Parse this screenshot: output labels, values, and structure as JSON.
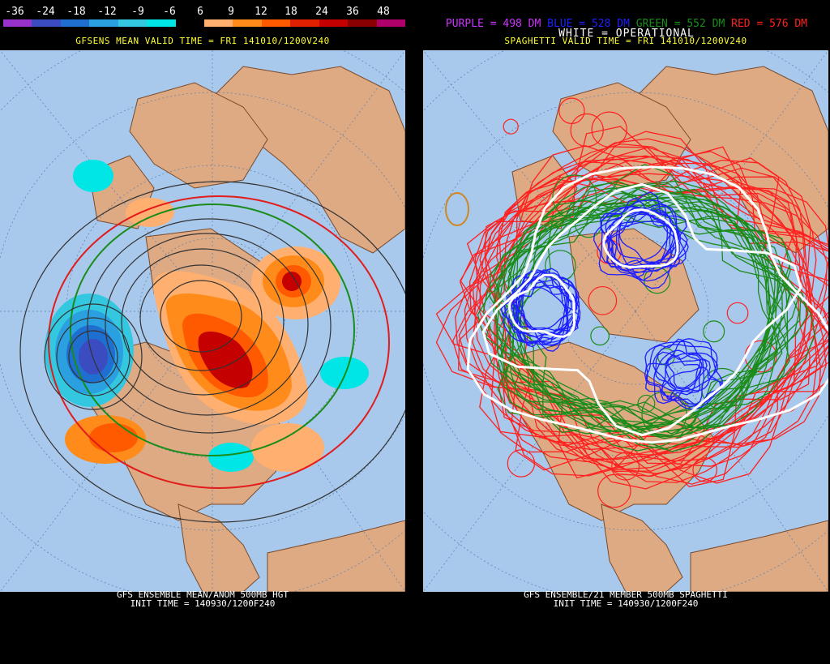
{
  "left": {
    "colorbar": {
      "labels": [
        "-36",
        "-24",
        "-18",
        "-12",
        "-9",
        "-6",
        "6",
        "9",
        "12",
        "18",
        "24",
        "36",
        "48"
      ],
      "colors": [
        "#9932cc",
        "#3b4cc0",
        "#1f6fd0",
        "#2aa0e0",
        "#34c8e0",
        "#00e5e5",
        "#000000",
        "#ffb070",
        "#ff8c1a",
        "#ff5a00",
        "#e02000",
        "#c40000",
        "#8a0000",
        "#b0006a"
      ]
    },
    "valid_time": "GFSENS MEAN VALID TIME = FRI 141010/1200V240",
    "footer_line1": "GFS ENSEMBLE MEAN/ANOM 500MB HGT",
    "footer_line2": "INIT TIME = 140930/1200F240"
  },
  "right": {
    "legend": {
      "purple": "PURPLE = 498 DM",
      "blue": "BLUE = 528 DM",
      "green": "GREEN = 552 DM",
      "red": "RED = 576 DM",
      "white": "WHITE = OPERATIONAL"
    },
    "colors": {
      "purple": "#cc33ff",
      "blue": "#1f1fff",
      "green": "#1a8c1a",
      "red": "#ff2020"
    },
    "valid_time": "SPAGHETTI VALID TIME = FRI 141010/1200V240",
    "footer_line1": "GFS ENSEMBLE/21 MEMBER 500MB SPAGHETTI",
    "footer_line2": "INIT TIME = 140930/1200F240"
  },
  "map_colors": {
    "ocean": "#a8c8ec",
    "land": "#deaa84",
    "border": "#7a4a2a"
  }
}
